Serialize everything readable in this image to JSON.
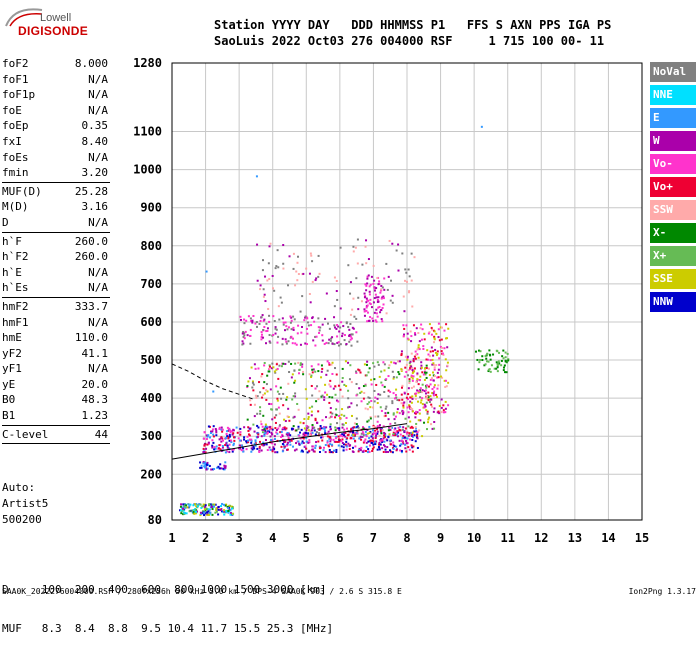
{
  "logo": {
    "line1": "Lowell",
    "line2": "DIGISONDE"
  },
  "header": {
    "line1": "Station YYYY DAY   DDD HHMMSS P1   FFS S AXN PPS IGA PS",
    "line2": "SaoLuis 2022 Oct03 276 004000 RSF     1 715 100 00- 11"
  },
  "params": [
    {
      "label": "foF2",
      "value": "8.000"
    },
    {
      "label": "foF1",
      "value": "N/A"
    },
    {
      "label": "foF1p",
      "value": "N/A"
    },
    {
      "label": "foE",
      "value": "N/A"
    },
    {
      "label": "foEp",
      "value": "0.35"
    },
    {
      "label": "fxI",
      "value": "8.40"
    },
    {
      "label": "foEs",
      "value": "N/A"
    },
    {
      "label": "fmin",
      "value": "3.20",
      "sep_after": true
    },
    {
      "label": "MUF(D)",
      "value": "25.28"
    },
    {
      "label": "M(D)",
      "value": "3.16"
    },
    {
      "label": "D",
      "value": "N/A",
      "sep_after": true
    },
    {
      "label": "h`F",
      "value": "260.0"
    },
    {
      "label": "h`F2",
      "value": "260.0"
    },
    {
      "label": "h`E",
      "value": "N/A"
    },
    {
      "label": "h`Es",
      "value": "N/A",
      "sep_after": true
    },
    {
      "label": "hmF2",
      "value": "333.7"
    },
    {
      "label": "hmF1",
      "value": "N/A"
    },
    {
      "label": "hmE",
      "value": "110.0"
    },
    {
      "label": "yF2",
      "value": "41.1"
    },
    {
      "label": "yF1",
      "value": "N/A"
    },
    {
      "label": "yE",
      "value": "20.0"
    },
    {
      "label": "B0",
      "value": "48.3"
    },
    {
      "label": "B1",
      "value": "1.23",
      "sep_after": true
    },
    {
      "label": "C-level",
      "value": "44",
      "sep_after": true
    }
  ],
  "auto": [
    "Auto:",
    "Artist5",
    "500200"
  ],
  "bottom_table": {
    "row1": "D     100  200  400  600  800 1000 1500 3000 [km]",
    "row2": "MUF   8.3  8.4  8.8  9.5 10.4 11.7 15.5 25.3 [MHz]"
  },
  "footer": "SAA0K_2022276004000.RSF / 280fx256h 50 kHz 5.0 km / DPS-4 SAA0K 903 / 2.6 S 315.8 E",
  "footer_right": "Ion2Png 1.3.17",
  "legend": [
    {
      "label": "NoVal",
      "color": "#808080"
    },
    {
      "label": "NNE",
      "color": "#00e0ff"
    },
    {
      "label": "E",
      "color": "#3399ff"
    },
    {
      "label": "W",
      "color": "#aa00aa"
    },
    {
      "label": "Vo-",
      "color": "#ff33cc"
    },
    {
      "label": "Vo+",
      "color": "#ee0033"
    },
    {
      "label": "SSW",
      "color": "#ffaaaa"
    },
    {
      "label": "X-",
      "color": "#008800"
    },
    {
      "label": "X+",
      "color": "#66bb55"
    },
    {
      "label": "SSE",
      "color": "#cccc00"
    },
    {
      "label": "NNW",
      "color": "#0000cc"
    }
  ],
  "chart_data": {
    "type": "scatter",
    "x_ticks": [
      1,
      2,
      3,
      4,
      5,
      6,
      7,
      8,
      9,
      10,
      11,
      12,
      13,
      14,
      15
    ],
    "y_ticks": [
      80,
      200,
      300,
      400,
      500,
      600,
      700,
      800,
      900,
      1000,
      1100,
      1280
    ],
    "xlim": [
      1,
      15
    ],
    "ylim": [
      80,
      1280
    ],
    "grid": true,
    "trace_profile": [
      [
        1.0,
        240
      ],
      [
        2.0,
        255
      ],
      [
        3.0,
        270
      ],
      [
        4.0,
        285
      ],
      [
        5.0,
        298
      ],
      [
        6.0,
        310
      ],
      [
        7.0,
        320
      ],
      [
        8.0,
        333
      ]
    ],
    "dashed_curve": [
      [
        1.0,
        490
      ],
      [
        1.5,
        470
      ],
      [
        2.0,
        445
      ],
      [
        2.5,
        425
      ],
      [
        3.0,
        410
      ],
      [
        3.4,
        398
      ]
    ],
    "clusters": [
      {
        "x0": 1.9,
        "x1": 8.3,
        "y0": 260,
        "y1": 330,
        "n": 700,
        "colors": [
          "#aa00aa",
          "#ff33cc",
          "#ee0033",
          "#0000cc",
          "#3399ff"
        ]
      },
      {
        "x0": 3.2,
        "x1": 8.8,
        "y0": 300,
        "y1": 500,
        "n": 500,
        "colors": [
          "#ff33cc",
          "#aa00aa",
          "#ee0033",
          "#ffaaaa",
          "#66bb55",
          "#008800",
          "#cccc00",
          "#808080"
        ]
      },
      {
        "x0": 7.8,
        "x1": 9.2,
        "y0": 360,
        "y1": 600,
        "n": 250,
        "colors": [
          "#ff33cc",
          "#ee0033",
          "#aa00aa",
          "#ffaaaa",
          "#cccc00"
        ]
      },
      {
        "x0": 3.0,
        "x1": 6.5,
        "y0": 540,
        "y1": 620,
        "n": 180,
        "colors": [
          "#aa00aa",
          "#ff33cc",
          "#808080"
        ]
      },
      {
        "x0": 6.7,
        "x1": 7.3,
        "y0": 600,
        "y1": 730,
        "n": 80,
        "colors": [
          "#aa00aa",
          "#ff33cc"
        ]
      },
      {
        "x0": 3.5,
        "x1": 8.2,
        "y0": 620,
        "y1": 820,
        "n": 120,
        "colors": [
          "#808080",
          "#aa00aa",
          "#ffaaaa"
        ]
      },
      {
        "x0": 1.2,
        "x1": 2.8,
        "y0": 95,
        "y1": 125,
        "n": 160,
        "colors": [
          "#3399ff",
          "#00e0ff",
          "#0000cc",
          "#aa00aa",
          "#008800",
          "#66bb55",
          "#cccc00"
        ]
      },
      {
        "x0": 1.8,
        "x1": 2.6,
        "y0": 215,
        "y1": 235,
        "n": 40,
        "colors": [
          "#0000cc",
          "#aa00aa",
          "#3399ff"
        ]
      },
      {
        "x0": 10.0,
        "x1": 11.0,
        "y0": 470,
        "y1": 530,
        "n": 60,
        "colors": [
          "#008800",
          "#66bb55"
        ]
      }
    ],
    "isolated_points": [
      [
        10.2,
        1115
      ],
      [
        2.0,
        735
      ],
      [
        3.5,
        985
      ],
      [
        2.2,
        420
      ]
    ]
  }
}
